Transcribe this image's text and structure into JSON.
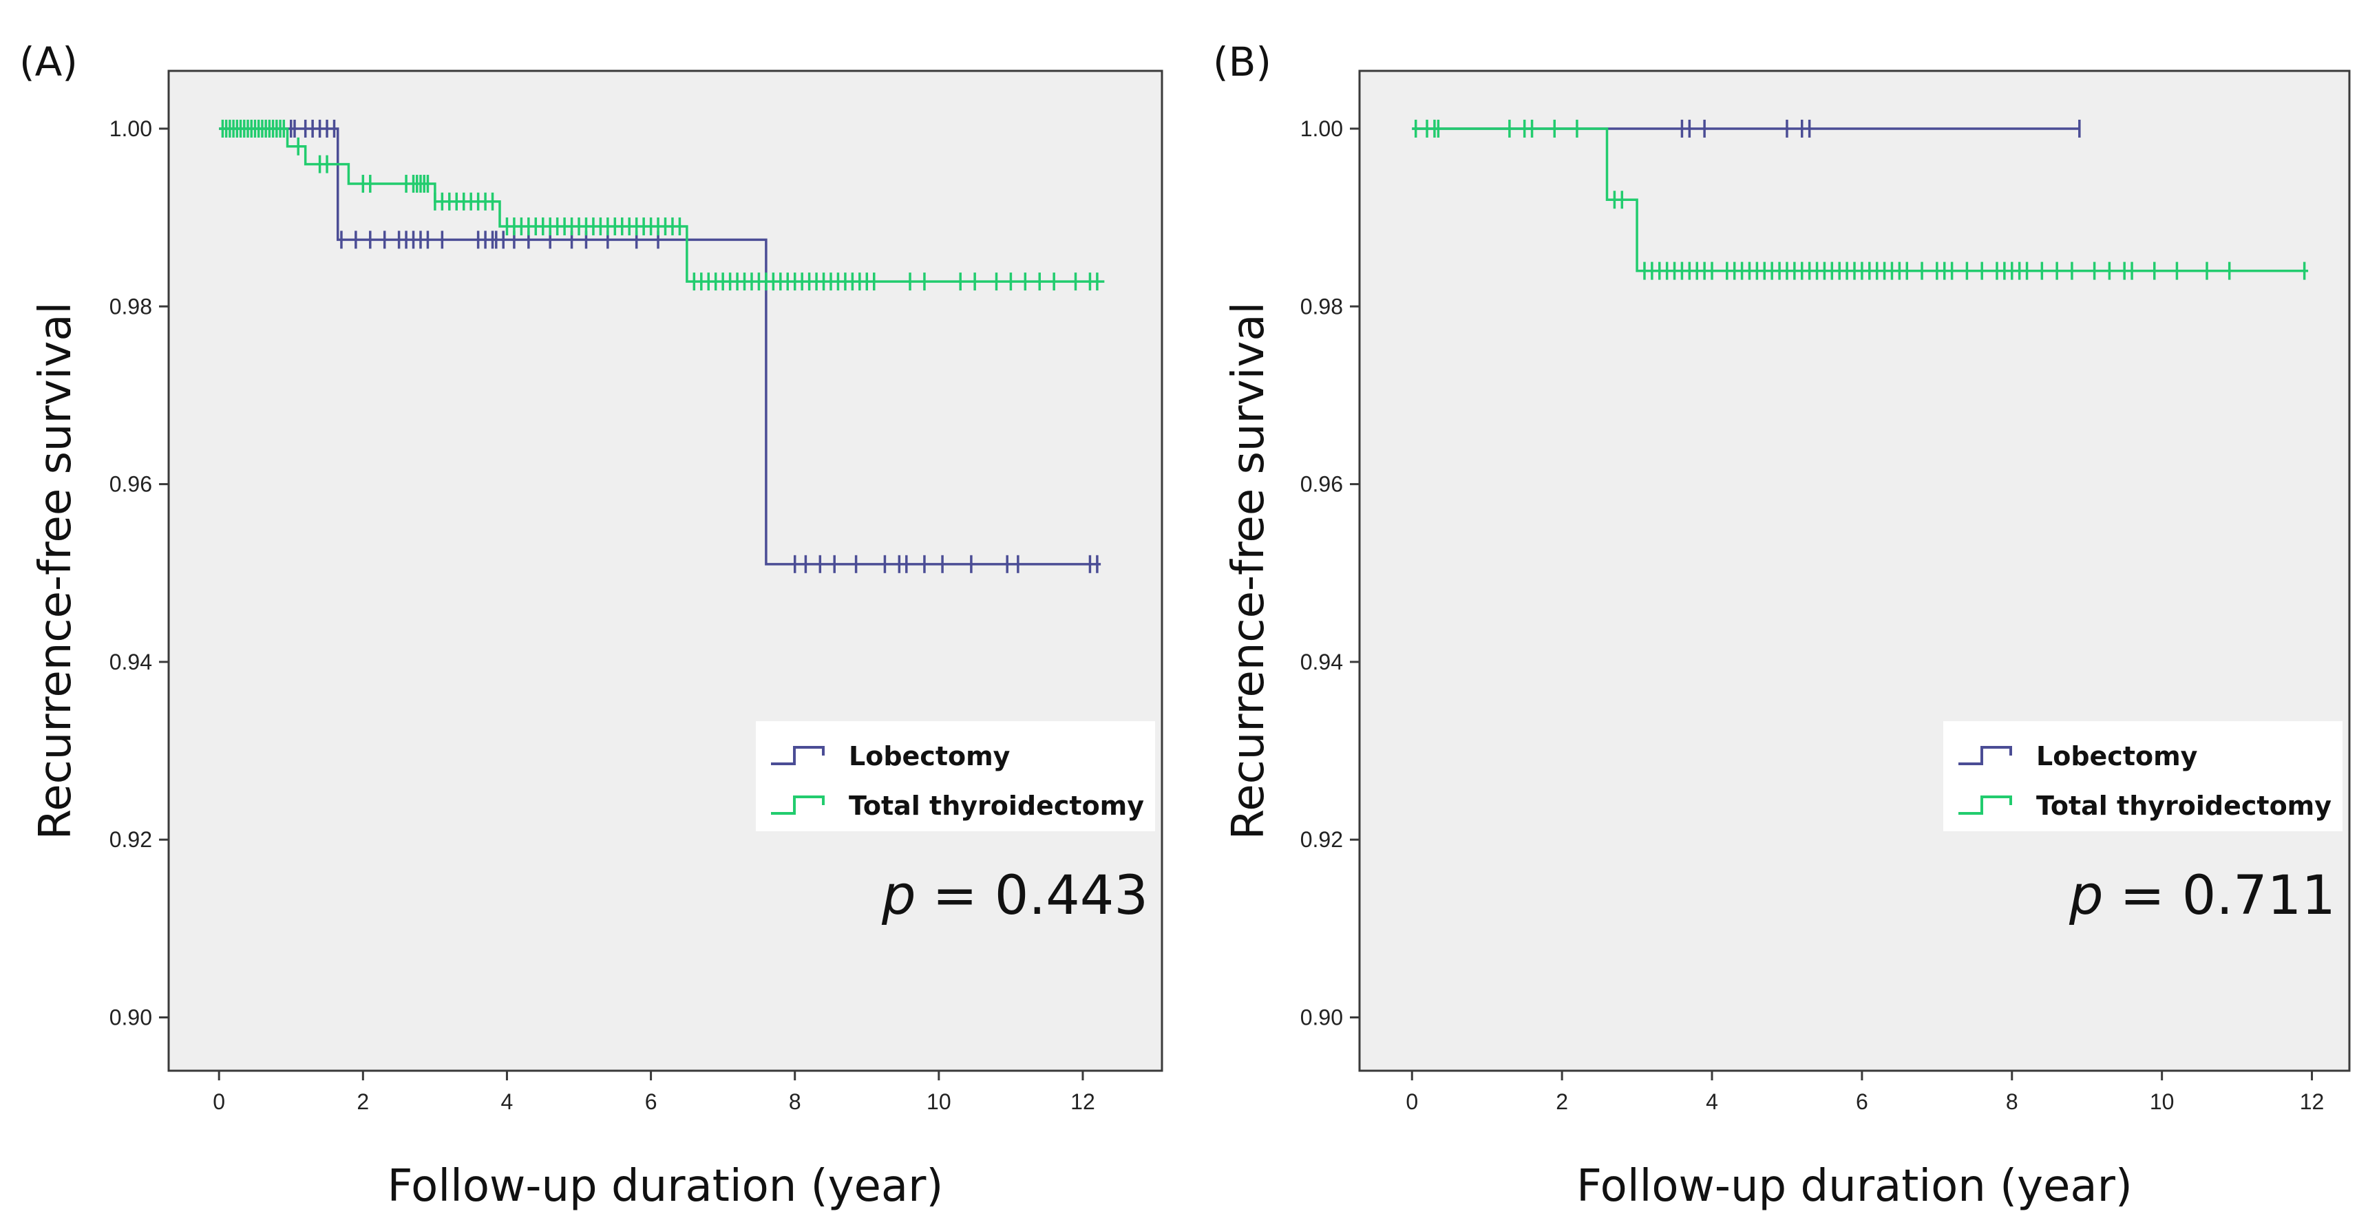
{
  "chart_data": [
    {
      "type": "line",
      "panel_label": "(A)",
      "xlabel": "Follow-up duration (year)",
      "ylabel": "Recurrence-free survival",
      "xlim": [
        -0.7,
        13.1
      ],
      "ylim": [
        0.894,
        1.0065
      ],
      "xticks": [
        0,
        2,
        4,
        6,
        8,
        10,
        12
      ],
      "yticks": [
        0.9,
        0.92,
        0.94,
        0.96,
        0.98,
        1.0
      ],
      "xtick_labels": [
        "0",
        "2",
        "4",
        "6",
        "8",
        "10",
        "12"
      ],
      "ytick_labels": [
        "0.90",
        "0.92",
        "0.94",
        "0.96",
        "0.98",
        "1.00"
      ],
      "p_label": "p",
      "p_value": "=  0.443",
      "series": [
        {
          "name": "Lobectomy",
          "color": "#4b4d95",
          "steps": [
            [
              0,
              1.0
            ],
            [
              1.65,
              0.9875
            ],
            [
              7.6,
              0.951
            ],
            [
              12.25,
              0.951
            ]
          ],
          "censored": [
            1.0,
            1.05,
            1.2,
            1.3,
            1.4,
            1.5,
            1.6,
            1.7,
            1.9,
            2.1,
            2.3,
            2.5,
            2.6,
            2.7,
            2.8,
            2.9,
            3.1,
            3.6,
            3.7,
            3.8,
            3.85,
            3.95,
            4.1,
            4.3,
            4.6,
            4.9,
            5.1,
            5.4,
            5.8,
            6.1,
            8.0,
            8.15,
            8.35,
            8.55,
            8.85,
            9.25,
            9.45,
            9.55,
            9.8,
            10.05,
            10.45,
            10.95,
            11.1,
            12.1,
            12.2
          ]
        },
        {
          "name": "Total thyroidectomy",
          "color": "#22cc6e",
          "steps": [
            [
              0,
              1.0
            ],
            [
              0.95,
              0.998
            ],
            [
              1.2,
              0.996
            ],
            [
              1.8,
              0.9938
            ],
            [
              3.0,
              0.9918
            ],
            [
              3.9,
              0.989
            ],
            [
              6.5,
              0.9828
            ],
            [
              12.3,
              0.9828
            ]
          ],
          "censored": [
            0.05,
            0.1,
            0.15,
            0.2,
            0.25,
            0.3,
            0.35,
            0.4,
            0.45,
            0.5,
            0.55,
            0.6,
            0.65,
            0.7,
            0.75,
            0.8,
            0.85,
            0.9,
            1.1,
            1.4,
            1.5,
            2.0,
            2.1,
            2.6,
            2.7,
            2.75,
            2.8,
            2.85,
            2.9,
            3.0,
            3.1,
            3.2,
            3.3,
            3.4,
            3.5,
            3.6,
            3.7,
            3.8,
            4.0,
            4.1,
            4.2,
            4.3,
            4.4,
            4.5,
            4.6,
            4.7,
            4.8,
            4.9,
            5.0,
            5.1,
            5.2,
            5.3,
            5.4,
            5.5,
            5.6,
            5.7,
            5.8,
            5.9,
            6.0,
            6.1,
            6.2,
            6.3,
            6.4,
            6.6,
            6.7,
            6.8,
            6.9,
            7.0,
            7.1,
            7.2,
            7.3,
            7.4,
            7.5,
            7.6,
            7.7,
            7.8,
            7.9,
            8.0,
            8.1,
            8.2,
            8.3,
            8.4,
            8.5,
            8.6,
            8.7,
            8.8,
            8.9,
            9.0,
            9.1,
            9.6,
            9.8,
            10.3,
            10.5,
            10.8,
            11.0,
            11.2,
            11.4,
            11.6,
            11.9,
            12.1,
            12.2
          ]
        }
      ],
      "legend": {
        "position": "bottom-right",
        "items": [
          "Lobectomy",
          "Total thyroidectomy"
        ]
      }
    },
    {
      "type": "line",
      "panel_label": "(B)",
      "xlabel": "Follow-up duration (year)",
      "ylabel": "Recurrence-free survival",
      "xlim": [
        -0.7,
        12.5
      ],
      "ylim": [
        0.894,
        1.0065
      ],
      "xticks": [
        0,
        2,
        4,
        6,
        8,
        10,
        12
      ],
      "yticks": [
        0.9,
        0.92,
        0.94,
        0.96,
        0.98,
        1.0
      ],
      "xtick_labels": [
        "0",
        "2",
        "4",
        "6",
        "8",
        "10",
        "12"
      ],
      "ytick_labels": [
        "0.90",
        "0.92",
        "0.94",
        "0.96",
        "0.98",
        "1.00"
      ],
      "p_label": "p",
      "p_value": "= 0.711",
      "series": [
        {
          "name": "Lobectomy",
          "color": "#4b4d95",
          "steps": [
            [
              0,
              1.0
            ],
            [
              8.9,
              1.0
            ]
          ],
          "censored": [
            3.6,
            3.7,
            3.9,
            5.0,
            5.2,
            5.3,
            8.9
          ]
        },
        {
          "name": "Total thyroidectomy",
          "color": "#22cc6e",
          "steps": [
            [
              0,
              1.0
            ],
            [
              2.6,
              0.992
            ],
            [
              3.0,
              0.984
            ],
            [
              11.95,
              0.984
            ]
          ],
          "censored": [
            0.05,
            0.2,
            0.3,
            0.35,
            1.3,
            1.5,
            1.6,
            1.9,
            2.2,
            2.7,
            2.8,
            3.1,
            3.2,
            3.3,
            3.4,
            3.5,
            3.6,
            3.7,
            3.8,
            3.9,
            4.0,
            4.2,
            4.3,
            4.4,
            4.5,
            4.6,
            4.7,
            4.8,
            4.9,
            5.0,
            5.1,
            5.2,
            5.3,
            5.4,
            5.5,
            5.6,
            5.7,
            5.8,
            5.9,
            6.0,
            6.1,
            6.2,
            6.3,
            6.4,
            6.5,
            6.6,
            6.8,
            7.0,
            7.1,
            7.2,
            7.4,
            7.6,
            7.8,
            7.9,
            8.0,
            8.1,
            8.2,
            8.4,
            8.6,
            8.8,
            9.1,
            9.3,
            9.5,
            9.6,
            9.9,
            10.2,
            10.6,
            10.9,
            11.9
          ]
        }
      ],
      "legend": {
        "position": "bottom-right",
        "items": [
          "Lobectomy",
          "Total thyroidectomy"
        ]
      }
    }
  ]
}
